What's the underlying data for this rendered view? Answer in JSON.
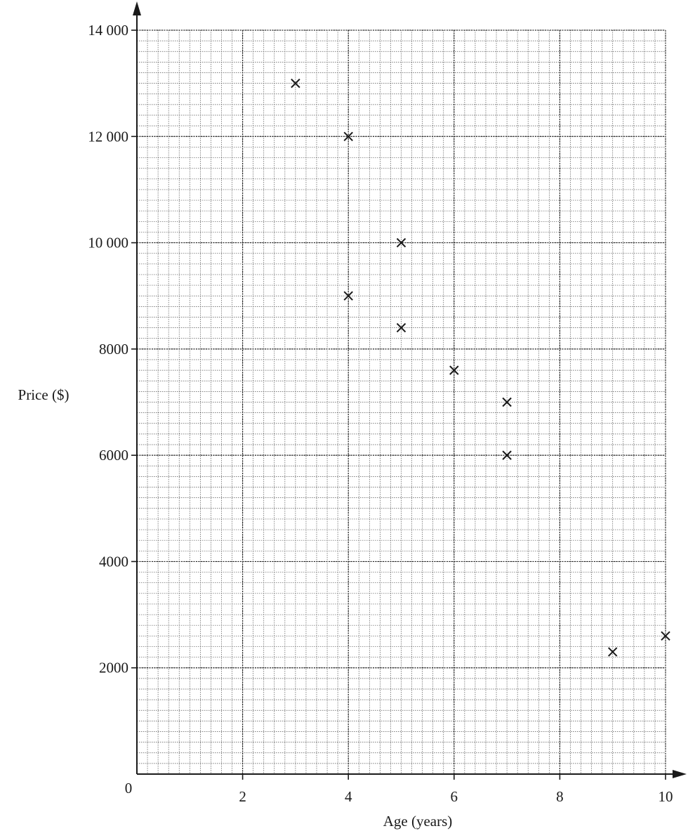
{
  "chart_data": {
    "type": "scatter",
    "title": "",
    "xlabel": "Age (years)",
    "ylabel": "Price ($)",
    "origin_label": "0",
    "xlim": [
      0,
      10
    ],
    "ylim": [
      0,
      14000
    ],
    "x_ticks": [
      {
        "value": 2,
        "label": "2"
      },
      {
        "value": 4,
        "label": "4"
      },
      {
        "value": 6,
        "label": "6"
      },
      {
        "value": 8,
        "label": "8"
      },
      {
        "value": 10,
        "label": "10"
      }
    ],
    "y_ticks": [
      {
        "value": 2000,
        "label": "2000"
      },
      {
        "value": 4000,
        "label": "4000"
      },
      {
        "value": 6000,
        "label": "6000"
      },
      {
        "value": 8000,
        "label": "8000"
      },
      {
        "value": 10000,
        "label": "10 000"
      },
      {
        "value": 12000,
        "label": "12 000"
      },
      {
        "value": 14000,
        "label": "14 000"
      }
    ],
    "grid": true,
    "grid_minor_x": 0.2,
    "grid_minor_y": 200,
    "marker": "x",
    "color": "#1a1a1a",
    "points": [
      {
        "x": 3,
        "y": 13000
      },
      {
        "x": 4,
        "y": 12000
      },
      {
        "x": 4,
        "y": 9000
      },
      {
        "x": 5,
        "y": 10000
      },
      {
        "x": 5,
        "y": 8400
      },
      {
        "x": 6,
        "y": 7600
      },
      {
        "x": 7,
        "y": 7000
      },
      {
        "x": 7,
        "y": 6000
      },
      {
        "x": 9,
        "y": 2300
      },
      {
        "x": 10,
        "y": 2600
      }
    ]
  }
}
